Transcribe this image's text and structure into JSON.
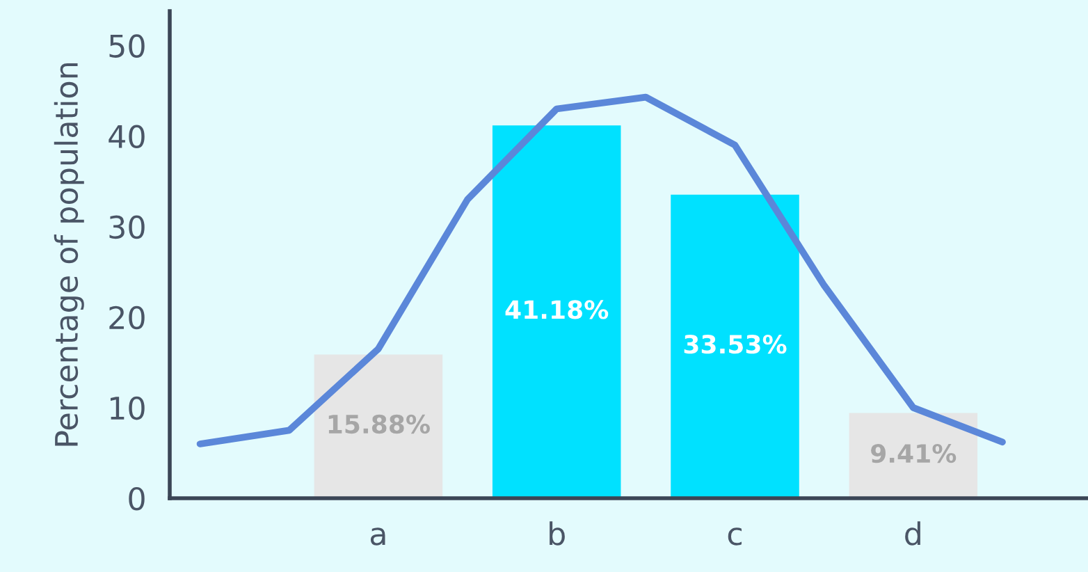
{
  "chart_data": {
    "type": "bar",
    "ylabel": "Percentage of population",
    "categories": [
      null,
      null,
      "a",
      null,
      "b",
      null,
      "c",
      null,
      "d",
      null
    ],
    "series": [
      {
        "values": [
          null,
          null,
          15.88,
          null,
          41.18,
          null,
          33.53,
          null,
          9.41,
          null
        ],
        "colors": [
          null,
          null,
          "#e6e6e6",
          null,
          "#00e1ff",
          null,
          "#00e1ff",
          null,
          "#e6e6e6",
          null
        ],
        "value_labels": [
          null,
          null,
          "15.88%",
          null,
          "41.18%",
          null,
          "33.53%",
          null,
          "9.41%",
          null
        ]
      },
      {
        "type": "line",
        "color": "#5b87d9",
        "values": [
          6,
          7.5,
          16.5,
          33,
          43,
          44.3,
          39,
          23.5,
          10,
          6.2
        ]
      }
    ],
    "ylim": [
      0,
      53.8
    ],
    "yticks": [
      0,
      10,
      20,
      30,
      40,
      50
    ],
    "grid": false,
    "legend": false
  }
}
